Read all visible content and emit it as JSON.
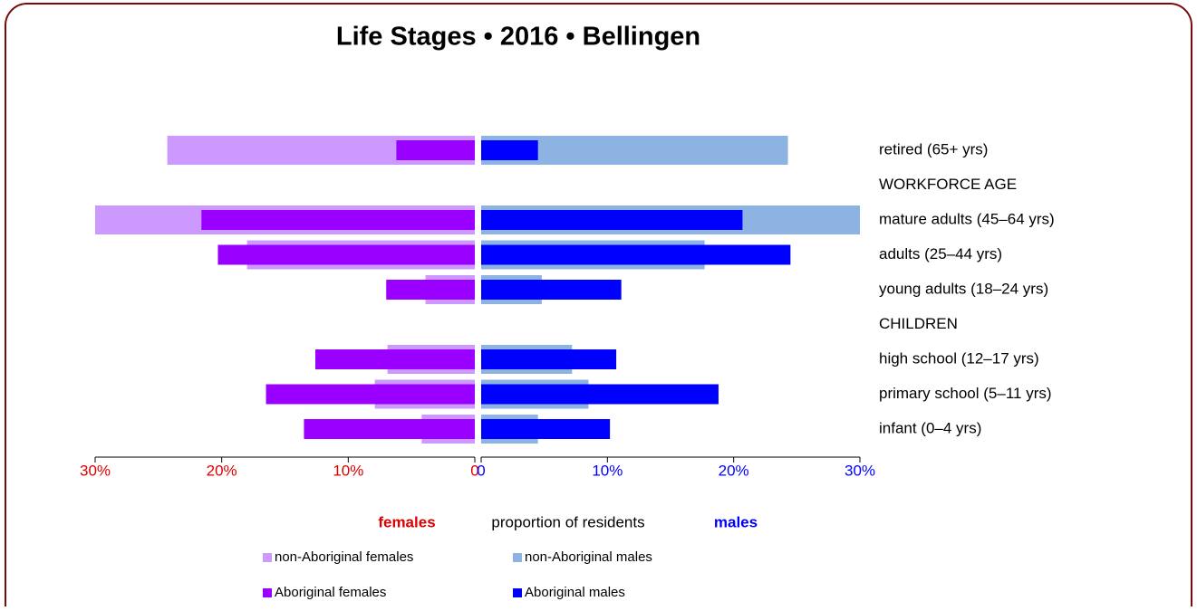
{
  "chart_data": {
    "type": "pyramid",
    "title": "Life Stages  •  2016  •  Bellingen",
    "categories": [
      "retired (65+ yrs)",
      "WORKFORCE AGE",
      "mature adults (45–64 yrs)",
      "adults (25–44 yrs)",
      "young adults (18–24 yrs)",
      "CHILDREN",
      "high school (12–17 yrs)",
      "primary school (5–11 yrs)",
      "infant (0–4 yrs)"
    ],
    "series": [
      {
        "name": "non-Aboriginal females",
        "color": "#cc99ff",
        "side": "left",
        "width": "wide",
        "values": [
          24.3,
          null,
          30,
          18.0,
          3.9,
          null,
          6.9,
          7.9,
          4.2
        ]
      },
      {
        "name": "non-Aboriginal males",
        "color": "#8db3e2",
        "side": "right",
        "width": "wide",
        "values": [
          24.3,
          null,
          30,
          17.7,
          4.8,
          null,
          7.2,
          8.5,
          4.5
        ]
      },
      {
        "name": "Aboriginal females",
        "color": "#9900ff",
        "side": "left",
        "width": "narrow",
        "values": [
          6.2,
          null,
          21.6,
          20.3,
          7.0,
          null,
          12.6,
          16.5,
          13.5
        ]
      },
      {
        "name": "Aboriginal males",
        "color": "#0000ff",
        "side": "right",
        "width": "narrow",
        "values": [
          4.5,
          null,
          20.7,
          24.5,
          11.1,
          null,
          10.7,
          18.8,
          10.2
        ]
      }
    ],
    "xlim": [
      0,
      30
    ],
    "xticks": [
      0,
      {
        "value": 10,
        "label": "10%"
      },
      {
        "value": 20,
        "label": "20%"
      },
      {
        "value": 30,
        "label": "30%"
      }
    ],
    "xlabel": "proportion of residents",
    "left_label": {
      "text": "females",
      "color": "#dd0000"
    },
    "right_label": {
      "text": "males",
      "color": "#0000ff"
    }
  }
}
